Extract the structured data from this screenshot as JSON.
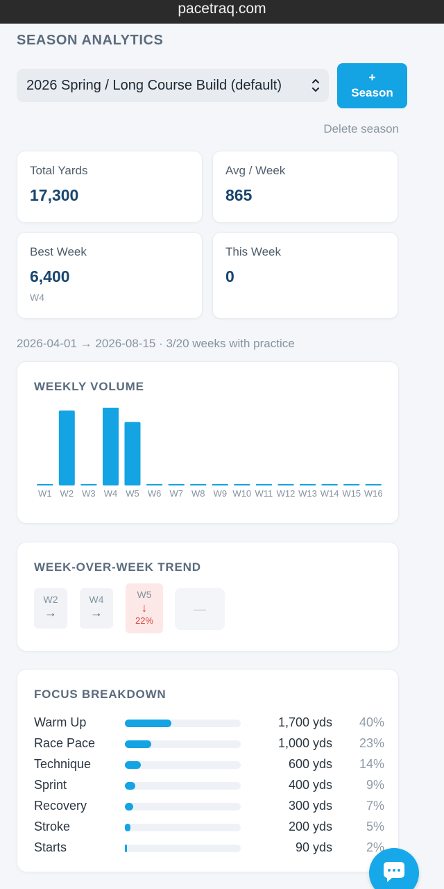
{
  "browser": {
    "url": "pacetraq.com"
  },
  "header": {
    "title": "SEASON ANALYTICS"
  },
  "season": {
    "selected": "2026 Spring / Long Course Build (default)",
    "add_label_plus": "+",
    "add_label": "Season",
    "delete_label": "Delete season"
  },
  "stats": {
    "total_yards": {
      "label": "Total Yards",
      "value": "17,300"
    },
    "avg_week": {
      "label": "Avg / Week",
      "value": "865"
    },
    "best_week": {
      "label": "Best Week",
      "value": "6,400",
      "sub": "W4"
    },
    "this_week": {
      "label": "This Week",
      "value": "0"
    }
  },
  "range_text": "2026-04-01 → 2026-08-15 · 3/20 weeks with practice",
  "weekly_volume": {
    "title": "WEEKLY VOLUME"
  },
  "chart_data": {
    "type": "bar",
    "title": "WEEKLY VOLUME",
    "categories": [
      "W1",
      "W2",
      "W3",
      "W4",
      "W5",
      "W6",
      "W7",
      "W8",
      "W9",
      "W10",
      "W11",
      "W12",
      "W13",
      "W14",
      "W15",
      "W16"
    ],
    "values": [
      0,
      5900,
      0,
      6400,
      5000,
      0,
      0,
      0,
      0,
      0,
      0,
      0,
      0,
      0,
      0,
      0
    ],
    "ylim": [
      0,
      6400
    ],
    "grid": false,
    "color": "#14a3e3"
  },
  "trend": {
    "title": "WEEK-OVER-WEEK TREND",
    "items": [
      {
        "week": "W2",
        "arrow": "→"
      },
      {
        "week": "W4",
        "arrow": "→"
      },
      {
        "week": "W5",
        "arrow": "↓",
        "pct": "22%"
      }
    ],
    "empty": "—"
  },
  "focus": {
    "title": "FOCUS BREAKDOWN",
    "rows": [
      {
        "label": "Warm Up",
        "yds": "1,700 yds",
        "pct": "40%",
        "share": 0.4
      },
      {
        "label": "Race Pace",
        "yds": "1,000 yds",
        "pct": "23%",
        "share": 0.23
      },
      {
        "label": "Technique",
        "yds": "600 yds",
        "pct": "14%",
        "share": 0.14
      },
      {
        "label": "Sprint",
        "yds": "400 yds",
        "pct": "9%",
        "share": 0.09
      },
      {
        "label": "Recovery",
        "yds": "300 yds",
        "pct": "7%",
        "share": 0.07
      },
      {
        "label": "Stroke",
        "yds": "200 yds",
        "pct": "5%",
        "share": 0.05
      },
      {
        "label": "Starts",
        "yds": "90 yds",
        "pct": "2%",
        "share": 0.02
      }
    ]
  },
  "colors": {
    "accent": "#14a3e3",
    "danger": "#d8433d"
  },
  "chat": {
    "icon": "chat-bubble-icon"
  }
}
